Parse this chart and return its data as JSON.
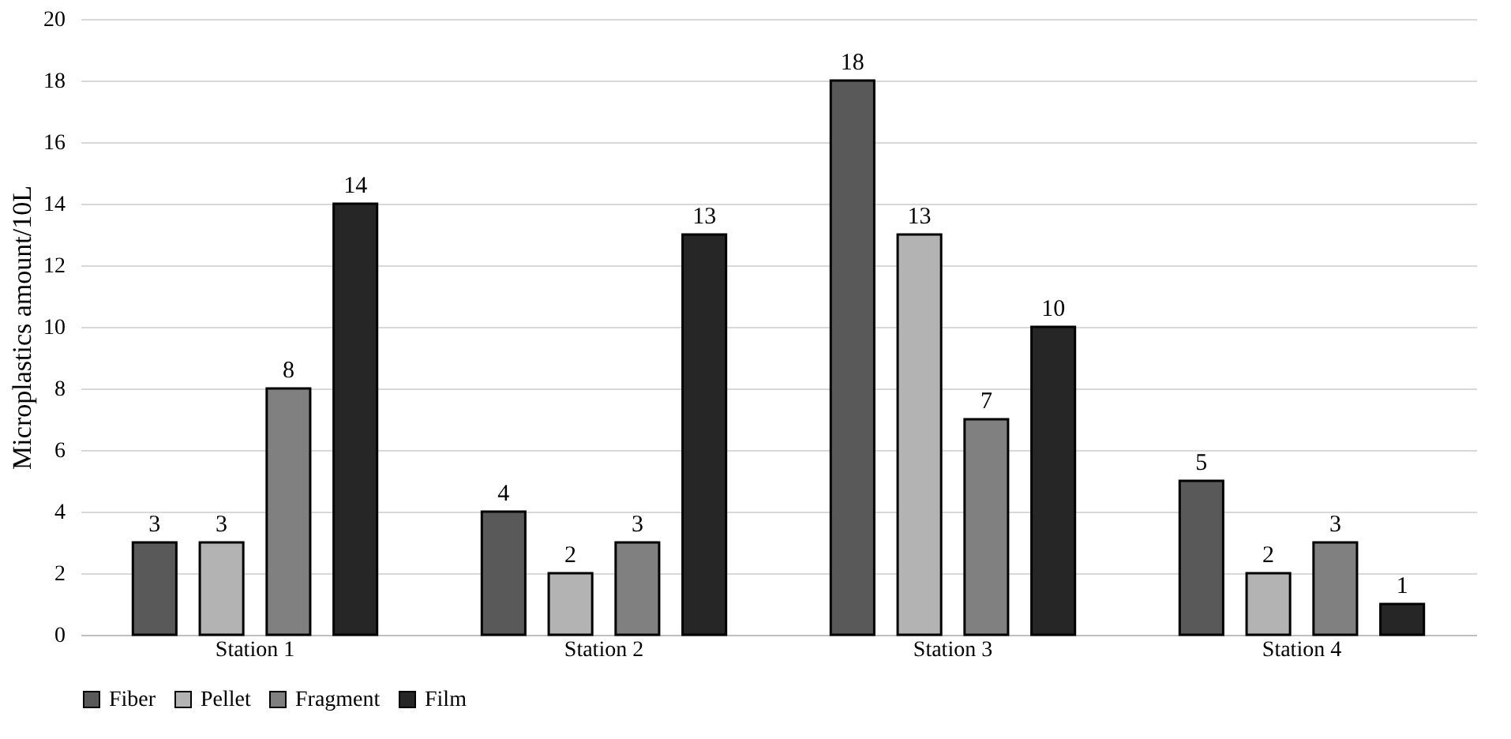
{
  "chart_data": {
    "type": "bar",
    "ylabel": "Microplastics amount/10L",
    "categories": [
      "Station 1",
      "Station 2",
      "Station 3",
      "Station 4"
    ],
    "series": [
      {
        "name": "Fiber",
        "color": "#595959",
        "values": [
          3,
          4,
          18,
          5
        ]
      },
      {
        "name": "Pellet",
        "color": "#b3b3b3",
        "values": [
          3,
          2,
          13,
          2
        ]
      },
      {
        "name": "Fragment",
        "color": "#808080",
        "values": [
          8,
          3,
          7,
          3
        ]
      },
      {
        "name": "Film",
        "color": "#262626",
        "values": [
          14,
          13,
          10,
          1
        ]
      }
    ],
    "ylim": [
      0,
      20
    ],
    "yticks": [
      0,
      2,
      4,
      6,
      8,
      10,
      12,
      14,
      16,
      18,
      20
    ],
    "grid": "y",
    "legend": "bottom",
    "data_labels": true
  }
}
